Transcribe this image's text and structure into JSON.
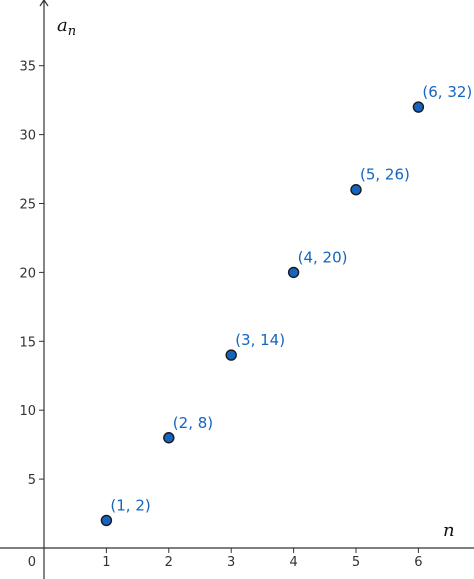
{
  "chart_data": {
    "type": "scatter",
    "title": "",
    "xlabel": "n",
    "ylabel_base": "a",
    "ylabel_sub": "n",
    "xlim": [
      0,
      6.8
    ],
    "ylim": [
      0,
      39.2
    ],
    "x_ticks": [
      1,
      2,
      3,
      4,
      5,
      6
    ],
    "y_ticks": [
      5,
      10,
      15,
      20,
      25,
      30,
      35
    ],
    "origin_label": "0",
    "grid": false,
    "point_color": "#1565c0",
    "label_color": "#1565c0",
    "points": [
      {
        "x": 1,
        "y": 2,
        "label": "(1, 2)"
      },
      {
        "x": 2,
        "y": 8,
        "label": "(2, 8)"
      },
      {
        "x": 3,
        "y": 14,
        "label": "(3, 14)"
      },
      {
        "x": 4,
        "y": 20,
        "label": "(4, 20)"
      },
      {
        "x": 5,
        "y": 26,
        "label": "(5, 26)"
      },
      {
        "x": 6,
        "y": 32,
        "label": "(6, 32)"
      }
    ]
  }
}
